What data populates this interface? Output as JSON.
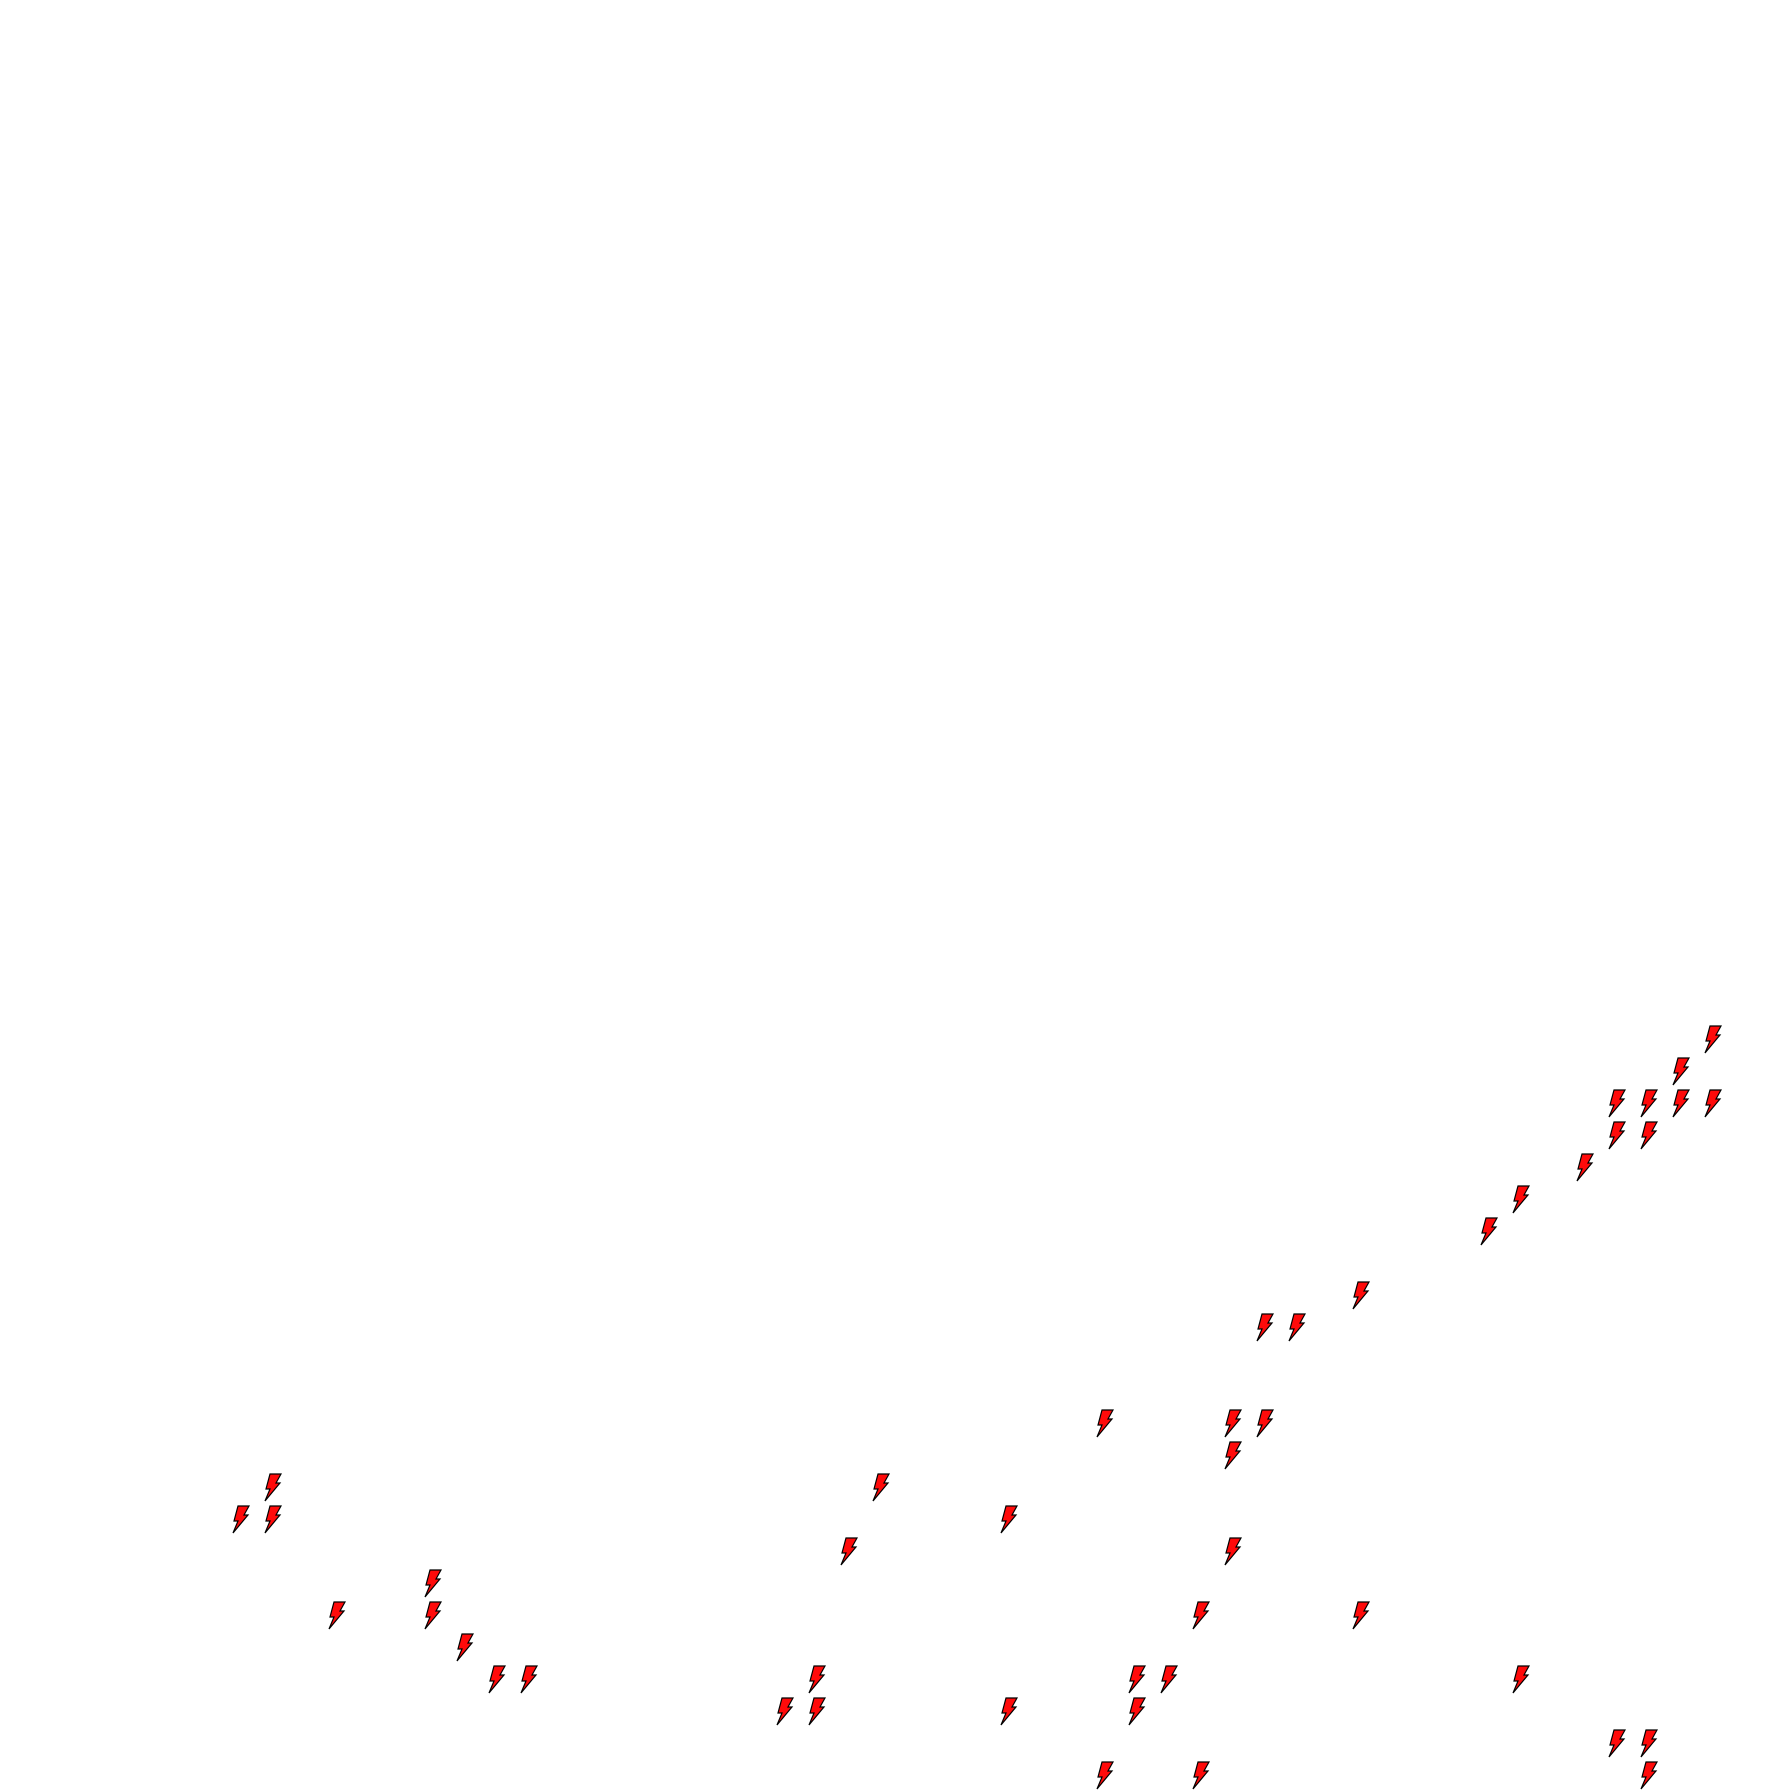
{
  "canvas": {
    "background": "#ffffff"
  },
  "markers": {
    "icon": "lightning-bolt-icon",
    "fill_color": "#ff0a0a",
    "outline_color": "#000000",
    "count": 52
  }
}
